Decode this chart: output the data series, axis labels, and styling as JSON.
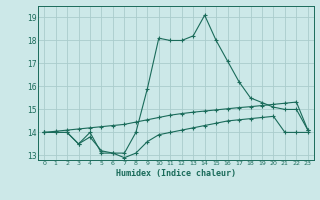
{
  "title": "",
  "xlabel": "Humidex (Indice chaleur)",
  "bg_color": "#cce8e8",
  "line_color": "#1a6b5a",
  "grid_color": "#aacccc",
  "xlim": [
    -0.5,
    23.5
  ],
  "ylim": [
    12.8,
    19.5
  ],
  "yticks": [
    13,
    14,
    15,
    16,
    17,
    18,
    19
  ],
  "xticks": [
    0,
    1,
    2,
    3,
    4,
    5,
    6,
    7,
    8,
    9,
    10,
    11,
    12,
    13,
    14,
    15,
    16,
    17,
    18,
    19,
    20,
    21,
    22,
    23
  ],
  "line1_x": [
    0,
    1,
    2,
    3,
    4,
    5,
    6,
    7,
    8,
    9,
    10,
    11,
    12,
    13,
    14,
    15,
    16,
    17,
    18,
    19,
    20,
    21,
    22,
    23
  ],
  "line1_y": [
    14.0,
    14.0,
    14.0,
    13.5,
    14.0,
    13.1,
    13.1,
    13.1,
    14.0,
    15.9,
    18.1,
    18.0,
    18.0,
    18.2,
    19.1,
    18.0,
    17.1,
    16.2,
    15.5,
    15.3,
    15.1,
    15.0,
    15.0,
    14.1
  ],
  "line2_x": [
    0,
    1,
    2,
    3,
    4,
    5,
    6,
    7,
    8,
    9,
    10,
    11,
    12,
    13,
    14,
    15,
    16,
    17,
    18,
    19,
    20,
    21,
    22,
    23
  ],
  "line2_y": [
    14.0,
    14.05,
    14.1,
    14.15,
    14.2,
    14.25,
    14.3,
    14.35,
    14.45,
    14.55,
    14.65,
    14.75,
    14.82,
    14.88,
    14.93,
    14.98,
    15.03,
    15.08,
    15.12,
    15.17,
    15.22,
    15.27,
    15.32,
    14.1
  ],
  "line3_x": [
    0,
    1,
    2,
    3,
    4,
    5,
    6,
    7,
    8,
    9,
    10,
    11,
    12,
    13,
    14,
    15,
    16,
    17,
    18,
    19,
    20,
    21,
    22,
    23
  ],
  "line3_y": [
    14.0,
    14.0,
    14.0,
    13.5,
    13.8,
    13.2,
    13.1,
    12.9,
    13.1,
    13.6,
    13.9,
    14.0,
    14.1,
    14.2,
    14.3,
    14.4,
    14.5,
    14.55,
    14.6,
    14.65,
    14.7,
    14.0,
    14.0,
    14.0
  ]
}
